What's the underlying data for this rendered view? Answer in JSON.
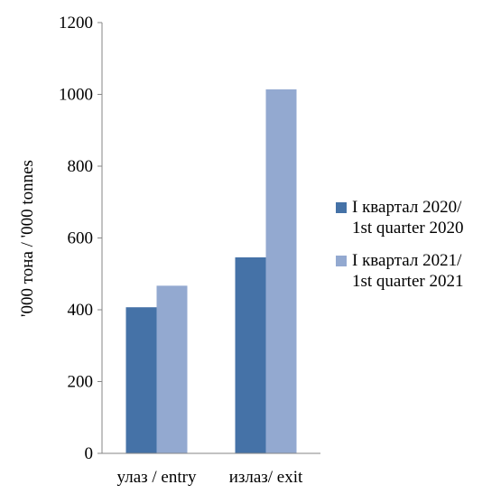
{
  "chart_data": {
    "type": "bar",
    "categories": [
      "улаз / entry",
      "излаз/ exit"
    ],
    "series": [
      {
        "name": "I квартал 2020/\n1st quarter 2020",
        "values": [
          407,
          546
        ],
        "color": "#4572A7"
      },
      {
        "name": "I квартал  2021/\n1st quarter 2021",
        "values": [
          467,
          1014
        ],
        "color": "#93A9D0"
      }
    ],
    "xlabel": "",
    "ylabel": "'000 тона / '000 tonnes",
    "ylim": [
      0,
      1200
    ],
    "yticks": [
      0,
      200,
      400,
      600,
      800,
      1000,
      1200
    ],
    "grid": false,
    "legend_position": "right"
  }
}
